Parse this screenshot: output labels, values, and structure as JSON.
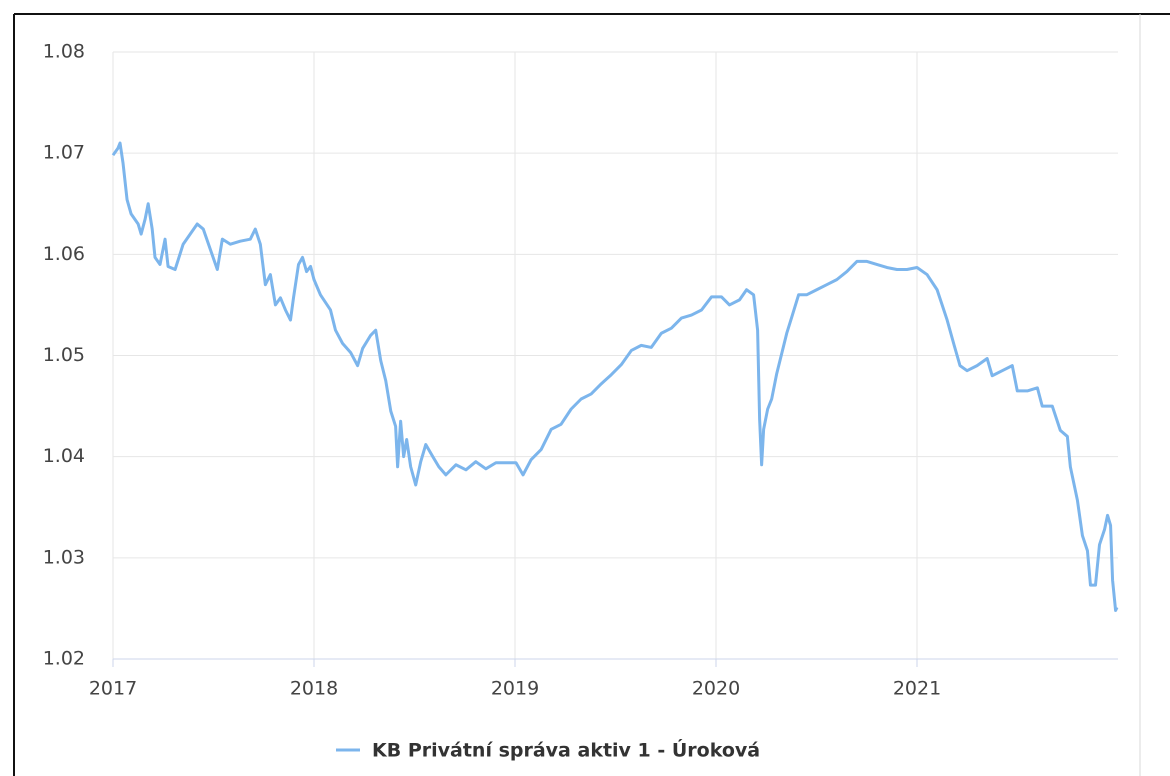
{
  "chart_data": {
    "type": "line",
    "x": [
      2017.0,
      2017.025,
      2017.035,
      2017.05,
      2017.07,
      2017.09,
      2017.125,
      2017.14,
      2017.16,
      2017.175,
      2017.195,
      2017.209,
      2017.234,
      2017.259,
      2017.274,
      2017.309,
      2017.349,
      2017.384,
      2017.419,
      2017.449,
      2017.484,
      2017.519,
      2017.544,
      2017.584,
      2017.633,
      2017.683,
      2017.708,
      2017.733,
      2017.758,
      2017.783,
      2017.808,
      2017.833,
      2017.858,
      2017.883,
      2017.898,
      2017.923,
      2017.943,
      2017.963,
      2017.983,
      2018.0,
      2018.032,
      2018.082,
      2018.107,
      2018.142,
      2018.182,
      2018.217,
      2018.242,
      2018.282,
      2018.307,
      2018.332,
      2018.357,
      2018.382,
      2018.406,
      2018.416,
      2018.431,
      2018.446,
      2018.461,
      2018.481,
      2018.506,
      2018.531,
      2018.556,
      2018.591,
      2018.621,
      2018.656,
      2018.706,
      2018.756,
      2018.805,
      2018.855,
      2018.905,
      2018.955,
      2019.005,
      2019.04,
      2019.08,
      2019.13,
      2019.18,
      2019.229,
      2019.279,
      2019.329,
      2019.379,
      2019.429,
      2019.479,
      2019.529,
      2019.579,
      2019.628,
      2019.678,
      2019.728,
      2019.778,
      2019.828,
      2019.878,
      2019.928,
      2019.978,
      2020.027,
      2020.067,
      2020.117,
      2020.152,
      2020.187,
      2020.207,
      2020.217,
      2020.227,
      2020.237,
      2020.257,
      2020.277,
      2020.302,
      2020.327,
      2020.352,
      2020.377,
      2020.411,
      2020.451,
      2020.501,
      2020.551,
      2020.601,
      2020.651,
      2020.701,
      2020.751,
      2020.8,
      2020.85,
      2020.9,
      2020.95,
      2021.0,
      2021.05,
      2021.1,
      2021.15,
      2021.185,
      2021.214,
      2021.249,
      2021.299,
      2021.349,
      2021.374,
      2021.424,
      2021.474,
      2021.499,
      2021.549,
      2021.599,
      2021.623,
      2021.673,
      2021.713,
      2021.748,
      2021.763,
      2021.798,
      2021.823,
      2021.848,
      2021.863,
      2021.888,
      2021.908,
      2021.933,
      2021.948,
      2021.963,
      2021.973,
      2021.988,
      2021.995
    ],
    "series": [
      {
        "name": "KB Privátní správa aktiv 1 - Úroková",
        "color": "#7cb5ec",
        "values": [
          1.0698,
          1.0705,
          1.071,
          1.069,
          1.0654,
          1.064,
          1.063,
          1.062,
          1.0635,
          1.065,
          1.0625,
          1.0597,
          1.059,
          1.0615,
          1.0588,
          1.0585,
          1.061,
          1.062,
          1.063,
          1.0625,
          1.0605,
          1.0585,
          1.0615,
          1.061,
          1.0613,
          1.0615,
          1.0625,
          1.061,
          1.057,
          1.058,
          1.055,
          1.0557,
          1.0545,
          1.0535,
          1.0557,
          1.059,
          1.0597,
          1.0583,
          1.0588,
          1.0575,
          1.056,
          1.0545,
          1.0525,
          1.0512,
          1.0503,
          1.049,
          1.0507,
          1.052,
          1.0525,
          1.0495,
          1.0475,
          1.0445,
          1.043,
          1.039,
          1.0435,
          1.04,
          1.0417,
          1.039,
          1.0372,
          1.0395,
          1.0412,
          1.04,
          1.039,
          1.0382,
          1.0392,
          1.0387,
          1.0395,
          1.0388,
          1.0394,
          1.0394,
          1.0394,
          1.0382,
          1.0397,
          1.0407,
          1.0427,
          1.0432,
          1.0447,
          1.0457,
          1.0462,
          1.0472,
          1.0481,
          1.0491,
          1.0505,
          1.051,
          1.0508,
          1.0522,
          1.0527,
          1.0537,
          1.054,
          1.0545,
          1.0558,
          1.0558,
          1.055,
          1.0555,
          1.0565,
          1.056,
          1.0525,
          1.0437,
          1.0392,
          1.0427,
          1.0447,
          1.0457,
          1.0482,
          1.0502,
          1.0522,
          1.0538,
          1.056,
          1.056,
          1.0565,
          1.057,
          1.0575,
          1.0583,
          1.0593,
          1.0593,
          1.059,
          1.0587,
          1.0585,
          1.0585,
          1.0587,
          1.058,
          1.0565,
          1.0535,
          1.051,
          1.049,
          1.0485,
          1.049,
          1.0497,
          1.048,
          1.0485,
          1.049,
          1.0465,
          1.0465,
          1.0468,
          1.045,
          1.045,
          1.0426,
          1.042,
          1.039,
          1.0357,
          1.0322,
          1.0307,
          1.0273,
          1.0273,
          1.0313,
          1.0328,
          1.0342,
          1.0332,
          1.0278,
          1.0248,
          1.0251
        ]
      }
    ],
    "xlim": [
      2017,
      2022
    ],
    "xticks": [
      2017,
      2018,
      2019,
      2020,
      2021
    ],
    "ylim": [
      1.02,
      1.08
    ],
    "yticks": [
      1.02,
      1.03,
      1.04,
      1.05,
      1.06,
      1.07,
      1.08
    ],
    "grid": true
  }
}
